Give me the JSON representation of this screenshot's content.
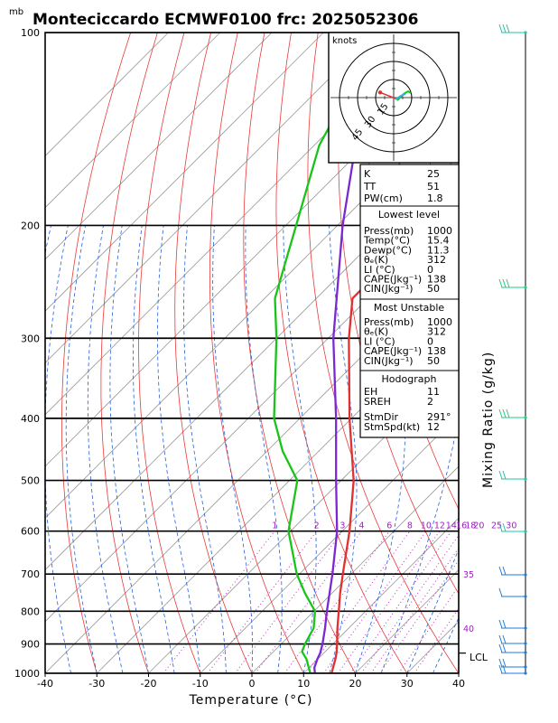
{
  "title": "Monteciccardo ECMWF0100  frc: 2025052306",
  "pressure_unit": "mb",
  "chart_data": {
    "type": "skew-t",
    "xlabel": "Temperature (°C)",
    "ylabel_right": "Mixing Ratio (g/kg)",
    "xlim": [
      -40,
      40
    ],
    "x_ticks": [
      -40,
      -30,
      -20,
      -10,
      0,
      10,
      20,
      30,
      40
    ],
    "p_ticks": [
      100,
      200,
      300,
      400,
      500,
      600,
      700,
      800,
      900,
      1000
    ],
    "grid": true,
    "mixing_ratio_labels": [
      "1",
      "2",
      "3",
      "4",
      "6",
      "8",
      "10",
      "12",
      "14",
      "16",
      "18",
      "20",
      "25",
      "30"
    ],
    "mixing_ratio_values": [
      1,
      2,
      3,
      4,
      6,
      8,
      10,
      12,
      14,
      16,
      18,
      20,
      25,
      30
    ],
    "mixing_side_labels": [
      "35",
      "40"
    ],
    "lcl_label": "LCL",
    "lcl_pressure": 930,
    "series": [
      {
        "name": "",
        "color": "#e03030",
        "p": [
          1000,
          950,
          925,
          900,
          850,
          800,
          750,
          700,
          600,
          500,
          400,
          300,
          260,
          200,
          150,
          100
        ],
        "t": [
          15.4,
          13.4,
          12.2,
          10.8,
          7.8,
          4.8,
          1.6,
          -1.6,
          -8.6,
          -17.6,
          -30.4,
          -46,
          -53,
          -53,
          -54,
          -56
        ]
      },
      {
        "name": "",
        "color": "#18c418",
        "p": [
          1000,
          950,
          925,
          900,
          850,
          800,
          750,
          700,
          600,
          500,
          450,
          400,
          300,
          260,
          200,
          150,
          100
        ],
        "t": [
          11.3,
          7.8,
          5.5,
          4.6,
          3.2,
          0.2,
          -5.2,
          -10.5,
          -20.4,
          -28.5,
          -37,
          -45,
          -60,
          -68,
          -78,
          -89,
          -99
        ]
      },
      {
        "name": "",
        "color": "#7a28d2",
        "p": [
          1000,
          980,
          950,
          930,
          900,
          850,
          800,
          700,
          600,
          500,
          400,
          300,
          200,
          150,
          100
        ],
        "t": [
          12.2,
          11.0,
          9.9,
          9.3,
          8.0,
          5.4,
          2.5,
          -3.6,
          -11,
          -21,
          -33,
          -49,
          -69,
          -82,
          -100
        ]
      }
    ],
    "hodograph": {
      "units": "knots",
      "ring_labels": [
        "15",
        "30",
        "45"
      ],
      "ring_values": [
        15,
        30,
        45
      ],
      "storm_motion": {
        "dir_deg": 291,
        "speed_kt": 12
      }
    },
    "wind_barbs_colors": [
      "#1a7fe0",
      "#21c4a4",
      "#1fcf7f"
    ]
  },
  "indices": {
    "k_label": "K",
    "k_value": "25",
    "tt_label": "TT",
    "tt_value": "51",
    "pw_label": "PW(cm)",
    "pw_value": "1.8",
    "lowest_header": "Lowest level",
    "lowest": [
      {
        "label": "Press(mb)",
        "value": "1000"
      },
      {
        "label": "Temp(°C)",
        "value": "15.4"
      },
      {
        "label": "Dewp(°C)",
        "value": "11.3"
      },
      {
        "label": "θₑ(K)",
        "value": "312"
      },
      {
        "label": "LI (°C)",
        "value": "0"
      },
      {
        "label": "CAPE(Jkg⁻¹)",
        "value": "138"
      },
      {
        "label": "CIN(Jkg⁻¹)",
        "value": "50"
      }
    ],
    "unstable_header": "Most Unstable",
    "unstable": [
      {
        "label": "Press(mb)",
        "value": "1000"
      },
      {
        "label": "θₑ(K)",
        "value": "312"
      },
      {
        "label": "LI (°C)",
        "value": "0"
      },
      {
        "label": "CAPE(Jkg⁻¹)",
        "value": "138"
      },
      {
        "label": "CIN(Jkg⁻¹)",
        "value": "50"
      }
    ],
    "hodo_header": "Hodograph",
    "hodo": [
      {
        "label": "EH",
        "value": "11"
      },
      {
        "label": "SREH",
        "value": "2"
      }
    ],
    "storm": [
      {
        "label": "StmDir",
        "value": "291°"
      },
      {
        "label": "StmSpd(kt)",
        "value": "12"
      }
    ]
  }
}
